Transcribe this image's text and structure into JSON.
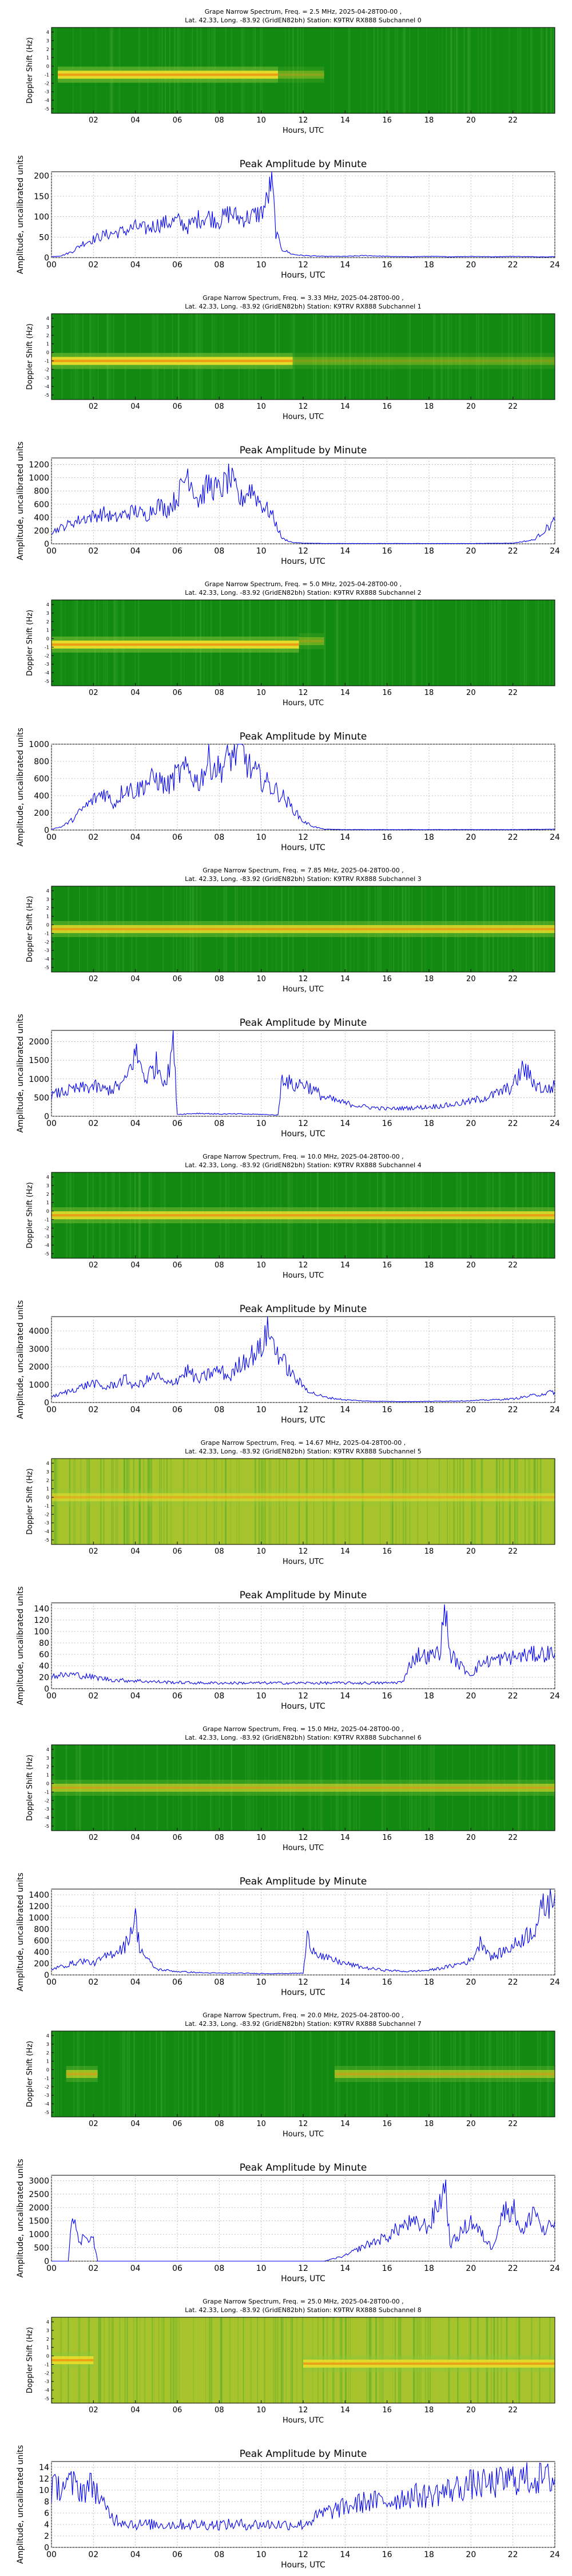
{
  "common": {
    "x_tick_labels": [
      "00",
      "02",
      "04",
      "06",
      "08",
      "10",
      "12",
      "14",
      "16",
      "18",
      "20",
      "22",
      "24"
    ],
    "spec_tick_labels": [
      "02",
      "04",
      "06",
      "08",
      "10",
      "12",
      "14",
      "16",
      "18",
      "20",
      "22"
    ],
    "doppler_tick_labels": [
      "4",
      "3",
      "2",
      "1",
      "0",
      "-1",
      "-2",
      "-3",
      "-4",
      "-5"
    ],
    "xlabel": "Hours, UTC",
    "spectrogram_ylabel": "Doppler Shift (Hz)",
    "amplitude_title": "Peak Amplitude by Minute",
    "amplitude_ylabel": "Amplitude, uncalibrated units",
    "title_line2": "Lat.  42.33, Long. -83.92 (GridEN82bh) Station: K9TRV RX888 Subchannel {n}"
  },
  "colors": {
    "line": "#0000ee",
    "grid": "#b0b0b0",
    "spec_background": "#128a12",
    "spec_band": "#f2e02a",
    "spec_band_core": "#f08c10"
  },
  "chart_data": [
    {
      "type": "heatmap",
      "subchannel": 0,
      "title": "Grape Narrow Spectrum, Freq. = 2.5 MHz, 2025-04-28T00-00 ,",
      "title_line2": "Lat.  42.33, Long. -83.92 (GridEN82bh) Station: K9TRV RX888 Subchannel 0",
      "band": [
        {
          "t0": 0.3,
          "t1": 10.8,
          "f": -0.5,
          "strength": 1.0
        },
        {
          "t0": 10.8,
          "t1": 13.0,
          "f": -0.5,
          "strength": 0.35
        }
      ],
      "bg": "#128a12"
    },
    {
      "type": "line",
      "subchannel": 0,
      "title": "Peak Amplitude by Minute",
      "ylim": [
        0,
        210
      ],
      "yticks": [
        0,
        50,
        100,
        150,
        200
      ],
      "x": [
        0,
        0.5,
        1,
        1.5,
        2,
        2.5,
        3,
        3.5,
        4,
        4.5,
        5,
        5.5,
        6,
        6.5,
        7,
        7.5,
        8,
        8.5,
        9,
        9.5,
        10,
        10.3,
        10.5,
        10.7,
        11,
        11.5,
        12,
        13,
        14,
        15,
        16,
        17,
        18,
        19,
        20,
        21,
        22,
        23,
        24
      ],
      "y": [
        2,
        5,
        15,
        35,
        45,
        55,
        60,
        65,
        75,
        70,
        80,
        85,
        90,
        75,
        95,
        100,
        90,
        110,
        95,
        100,
        110,
        140,
        195,
        60,
        20,
        8,
        5,
        3,
        3,
        5,
        3,
        2,
        3,
        2,
        3,
        2,
        3,
        2,
        2
      ]
    },
    {
      "type": "heatmap",
      "subchannel": 1,
      "title": "Grape Narrow Spectrum, Freq. = 3.33 MHz, 2025-04-28T00-00 ,",
      "title_line2": "Lat.  42.33, Long. -83.92 (GridEN82bh) Station: K9TRV RX888 Subchannel 1",
      "band": [
        {
          "t0": 0,
          "t1": 11.5,
          "f": -0.5,
          "strength": 1.0
        },
        {
          "t0": 11.5,
          "t1": 24,
          "f": -0.5,
          "strength": 0.3
        }
      ],
      "bg": "#128a12"
    },
    {
      "type": "line",
      "subchannel": 1,
      "title": "Peak Amplitude by Minute",
      "ylim": [
        0,
        1300
      ],
      "yticks": [
        0,
        200,
        400,
        600,
        800,
        1000,
        1200
      ],
      "x": [
        0,
        0.5,
        1,
        1.5,
        2,
        2.5,
        3,
        3.5,
        4,
        4.5,
        5,
        5.5,
        6,
        6.5,
        7,
        7.5,
        8,
        8.5,
        9,
        9.5,
        10,
        10.5,
        11,
        11.5,
        12,
        13,
        14,
        16,
        18,
        20,
        22,
        23,
        23.5,
        24
      ],
      "y": [
        180,
        250,
        320,
        380,
        420,
        460,
        380,
        450,
        500,
        420,
        600,
        520,
        700,
        1100,
        650,
        900,
        800,
        1000,
        650,
        850,
        600,
        450,
        80,
        20,
        10,
        5,
        5,
        5,
        5,
        5,
        10,
        60,
        200,
        350
      ]
    },
    {
      "type": "heatmap",
      "subchannel": 2,
      "title": "Grape Narrow Spectrum, Freq. = 5.0 MHz, 2025-04-28T00-00 ,",
      "title_line2": "Lat.  42.33, Long. -83.92 (GridEN82bh) Station: K9TRV RX888 Subchannel 2",
      "band": [
        {
          "t0": 0,
          "t1": 11.8,
          "f": -0.2,
          "strength": 1.0
        },
        {
          "t0": 11.8,
          "t1": 13.0,
          "f": 0.2,
          "strength": 0.35
        }
      ],
      "bg": "#128a12"
    },
    {
      "type": "line",
      "subchannel": 2,
      "title": "Peak Amplitude by Minute",
      "ylim": [
        0,
        1000
      ],
      "yticks": [
        0,
        200,
        400,
        600,
        800,
        1000
      ],
      "x": [
        0,
        0.5,
        1,
        1.5,
        2,
        2.5,
        3,
        3.5,
        4,
        4.5,
        5,
        5.5,
        6,
        6.5,
        7,
        7.5,
        8,
        8.5,
        9,
        9.5,
        10,
        10.5,
        11,
        11.5,
        12,
        12.5,
        13,
        14,
        16,
        18,
        20,
        22,
        24
      ],
      "y": [
        10,
        40,
        120,
        250,
        350,
        450,
        300,
        500,
        450,
        550,
        600,
        500,
        650,
        700,
        550,
        800,
        700,
        850,
        950,
        700,
        600,
        500,
        400,
        250,
        100,
        40,
        10,
        5,
        5,
        5,
        5,
        5,
        10
      ]
    },
    {
      "type": "heatmap",
      "subchannel": 3,
      "title": "Grape Narrow Spectrum, Freq. = 7.85 MHz, 2025-04-28T00-00 ,",
      "title_line2": "Lat.  42.33, Long. -83.92 (GridEN82bh) Station: K9TRV RX888 Subchannel 3",
      "band": [
        {
          "t0": 0,
          "t1": 24,
          "f": 0.0,
          "strength": 0.85
        }
      ],
      "bg": "#128a12"
    },
    {
      "type": "line",
      "subchannel": 3,
      "title": "Peak Amplitude by Minute",
      "ylim": [
        0,
        2300
      ],
      "yticks": [
        0,
        500,
        1000,
        1500,
        2000
      ],
      "x": [
        0,
        0.5,
        1,
        1.5,
        2,
        2.5,
        3,
        3.5,
        4,
        4.5,
        5,
        5.5,
        5.8,
        6,
        7,
        8,
        9,
        10,
        10.8,
        11,
        11.5,
        12,
        12.5,
        13,
        14,
        15,
        16,
        17,
        18,
        19,
        20,
        21,
        22,
        22.5,
        23,
        23.5,
        24
      ],
      "y": [
        550,
        650,
        700,
        750,
        800,
        700,
        750,
        900,
        1700,
        1000,
        1400,
        900,
        2100,
        50,
        80,
        60,
        60,
        50,
        30,
        1100,
        800,
        900,
        700,
        500,
        350,
        250,
        200,
        220,
        250,
        300,
        400,
        550,
        800,
        1300,
        900,
        700,
        800
      ]
    },
    {
      "type": "heatmap",
      "subchannel": 4,
      "title": "Grape Narrow Spectrum, Freq. = 10.0 MHz, 2025-04-28T00-00 ,",
      "title_line2": "Lat.  42.33, Long. -83.92 (GridEN82bh) Station: K9TRV RX888 Subchannel 4",
      "band": [
        {
          "t0": 0,
          "t1": 24,
          "f": 0.0,
          "strength": 0.9
        }
      ],
      "bg": "#128a12"
    },
    {
      "type": "line",
      "subchannel": 4,
      "title": "Peak Amplitude by Minute",
      "ylim": [
        0,
        4800
      ],
      "yticks": [
        0,
        1000,
        2000,
        3000,
        4000
      ],
      "x": [
        0,
        0.5,
        1,
        1.5,
        2,
        2.5,
        3,
        3.5,
        4,
        4.5,
        5,
        5.5,
        6,
        6.5,
        7,
        7.5,
        8,
        8.5,
        9,
        9.5,
        10,
        10.3,
        10.6,
        11,
        11.5,
        12,
        12.5,
        13,
        14,
        15,
        16,
        17,
        18,
        19,
        20,
        21,
        22,
        23,
        24
      ],
      "y": [
        300,
        500,
        700,
        900,
        1100,
        800,
        1000,
        1300,
        900,
        1200,
        1500,
        1000,
        1300,
        1800,
        1200,
        1600,
        1800,
        1400,
        2200,
        2600,
        3000,
        4200,
        3200,
        2400,
        1500,
        900,
        500,
        300,
        150,
        80,
        60,
        50,
        60,
        80,
        100,
        150,
        200,
        400,
        600
      ]
    },
    {
      "type": "heatmap",
      "subchannel": 5,
      "title": "Grape Narrow Spectrum, Freq. = 14.67 MHz, 2025-04-28T00-00 ,",
      "title_line2": "Lat.  42.33, Long. -83.92 (GridEN82bh) Station: K9TRV RX888 Subchannel 5",
      "band": [
        {
          "t0": 0,
          "t1": 24,
          "f": 0.5,
          "strength": 0.6
        }
      ],
      "bg": "#a8c42c"
    },
    {
      "type": "line",
      "subchannel": 5,
      "title": "Peak Amplitude by Minute",
      "ylim": [
        0,
        150
      ],
      "yticks": [
        0,
        20,
        40,
        60,
        80,
        100,
        120,
        140
      ],
      "x": [
        0,
        1,
        2,
        3,
        4,
        5,
        6,
        7,
        8,
        9,
        10,
        11,
        12,
        13,
        14,
        15,
        16,
        16.8,
        17,
        17.5,
        18,
        18.5,
        18.8,
        19,
        19.5,
        20,
        20.5,
        21,
        22,
        23,
        24
      ],
      "y": [
        22,
        25,
        20,
        15,
        14,
        12,
        11,
        10,
        10,
        10,
        10,
        10,
        10,
        10,
        10,
        10,
        10,
        12,
        40,
        60,
        55,
        65,
        140,
        60,
        40,
        25,
        45,
        50,
        55,
        60,
        62
      ]
    },
    {
      "type": "heatmap",
      "subchannel": 6,
      "title": "Grape Narrow Spectrum, Freq. = 15.0 MHz, 2025-04-28T00-00 ,",
      "title_line2": "Lat.  42.33, Long. -83.92 (GridEN82bh) Station: K9TRV RX888 Subchannel 6",
      "band": [
        {
          "t0": 0,
          "t1": 24,
          "f": 0.0,
          "strength": 0.6
        }
      ],
      "bg": "#128a12"
    },
    {
      "type": "line",
      "subchannel": 6,
      "title": "Peak Amplitude by Minute",
      "ylim": [
        0,
        1500
      ],
      "yticks": [
        0,
        200,
        400,
        600,
        800,
        1000,
        1200,
        1400
      ],
      "x": [
        0,
        0.5,
        1,
        1.5,
        2,
        2.5,
        3,
        3.5,
        4,
        4.2,
        4.5,
        5,
        6,
        7,
        8,
        9,
        10,
        11,
        12,
        12.2,
        12.5,
        13,
        14,
        15,
        16,
        17,
        18,
        19,
        20,
        20.5,
        21,
        22,
        23,
        23.5,
        24
      ],
      "y": [
        100,
        150,
        200,
        250,
        200,
        300,
        400,
        500,
        1000,
        500,
        300,
        100,
        60,
        40,
        30,
        30,
        25,
        25,
        30,
        650,
        450,
        300,
        200,
        120,
        80,
        60,
        80,
        150,
        250,
        600,
        300,
        500,
        800,
        1200,
        1400
      ]
    },
    {
      "type": "heatmap",
      "subchannel": 7,
      "title": "Grape Narrow Spectrum, Freq. = 20.0 MHz, 2025-04-28T00-00 ,",
      "title_line2": "Lat.  42.33, Long. -83.92 (GridEN82bh) Station: K9TRV RX888 Subchannel 7",
      "band": [
        {
          "t0": 0.7,
          "t1": 2.2,
          "f": 0.0,
          "strength": 0.6
        },
        {
          "t0": 13.5,
          "t1": 24,
          "f": 0.0,
          "strength": 0.55
        }
      ],
      "bg": "#128a12"
    },
    {
      "type": "line",
      "subchannel": 7,
      "title": "Peak Amplitude by Minute",
      "ylim": [
        0,
        3200
      ],
      "yticks": [
        0,
        500,
        1000,
        1500,
        2000,
        2500,
        3000
      ],
      "x": [
        0,
        0.8,
        1,
        1.3,
        1.6,
        2,
        2.2,
        3,
        5,
        8,
        10,
        12,
        13,
        14,
        15,
        16,
        16.5,
        17,
        18,
        18.8,
        19,
        20,
        21,
        21.5,
        22,
        22.5,
        23,
        23.5,
        24
      ],
      "y": [
        0,
        0,
        2100,
        600,
        1000,
        800,
        0,
        0,
        0,
        0,
        0,
        0,
        0,
        200,
        600,
        900,
        1200,
        1400,
        1300,
        2800,
        600,
        1500,
        500,
        1800,
        2000,
        1000,
        2000,
        1000,
        1500
      ]
    },
    {
      "type": "heatmap",
      "subchannel": 8,
      "title": "Grape Narrow Spectrum, Freq. = 25.0 MHz, 2025-04-28T00-00 ,",
      "title_line2": "Lat.  42.33, Long. -83.92 (GridEN82bh) Station: K9TRV RX888 Subchannel 8",
      "band": [
        {
          "t0": 0,
          "t1": 2.0,
          "f": 0.0,
          "strength": 0.9
        },
        {
          "t0": 12.0,
          "t1": 24,
          "f": -0.4,
          "strength": 0.9
        }
      ],
      "bg": "#a8c42c"
    },
    {
      "type": "line",
      "subchannel": 8,
      "title": "Peak Amplitude by Minute",
      "ylim": [
        0,
        15
      ],
      "yticks": [
        0,
        2,
        4,
        6,
        8,
        10,
        12,
        14
      ],
      "x": [
        0,
        0.5,
        1,
        1.5,
        2,
        2.5,
        3,
        4,
        5,
        6,
        7,
        8,
        9,
        10,
        11,
        12,
        12.5,
        13,
        14,
        15,
        16,
        17,
        18,
        19,
        20,
        21,
        22,
        23,
        24
      ],
      "y": [
        10,
        11,
        11,
        10,
        11,
        7,
        5,
        4,
        4,
        4,
        4,
        4,
        4,
        4,
        4,
        4,
        5,
        6,
        7,
        8,
        8,
        9,
        9,
        10,
        11,
        11,
        12,
        12,
        12
      ]
    }
  ]
}
